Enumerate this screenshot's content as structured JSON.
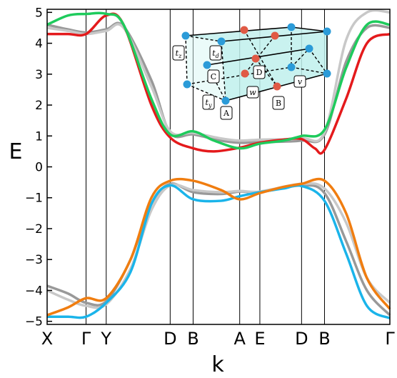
{
  "chart_data": {
    "type": "line",
    "xlabel": "k",
    "ylabel": "E",
    "ylim": [
      -5.1,
      5.1
    ],
    "y_ticks": [
      5,
      4,
      3,
      2,
      1,
      0,
      -1,
      -2,
      -3,
      -4,
      -5
    ],
    "y_tick_labels": [
      "5",
      "4",
      "3",
      "2",
      "1",
      "0",
      "−1",
      "−2",
      "−3",
      "−4",
      "−5"
    ],
    "k_points": [
      {
        "label": "X",
        "x": 0.0
      },
      {
        "label": "Γ",
        "x": 0.56
      },
      {
        "label": "Y",
        "x": 0.85
      },
      {
        "label": "D",
        "x": 1.77
      },
      {
        "label": "B",
        "x": 2.1
      },
      {
        "label": "A",
        "x": 2.77
      },
      {
        "label": "E",
        "x": 3.06
      },
      {
        "label": "D",
        "x": 3.66
      },
      {
        "label": "B",
        "x": 3.99
      },
      {
        "label": "Γ",
        "x": 4.93
      }
    ],
    "xlim": [
      0,
      4.93
    ],
    "series": [
      {
        "color": "#999999",
        "points": [
          [
            0,
            4.6
          ],
          [
            0.3,
            4.45
          ],
          [
            0.56,
            4.35
          ],
          [
            0.85,
            4.45
          ],
          [
            1.1,
            4.55
          ],
          [
            1.5,
            2.8
          ],
          [
            1.77,
            1.1
          ],
          [
            2.1,
            1.05
          ],
          [
            2.5,
            0.85
          ],
          [
            2.77,
            0.78
          ],
          [
            3.06,
            0.8
          ],
          [
            3.66,
            0.85
          ],
          [
            3.99,
            1.05
          ],
          [
            4.3,
            3.4
          ],
          [
            4.6,
            4.5
          ],
          [
            4.93,
            4.5
          ]
        ]
      },
      {
        "color": "#c8c8c8",
        "points": [
          [
            0,
            4.5
          ],
          [
            0.3,
            4.4
          ],
          [
            0.56,
            4.3
          ],
          [
            0.85,
            4.4
          ],
          [
            1.1,
            4.5
          ],
          [
            1.5,
            2.6
          ],
          [
            1.77,
            1.15
          ],
          [
            2.1,
            1.1
          ],
          [
            2.5,
            0.92
          ],
          [
            2.77,
            0.85
          ],
          [
            3.06,
            0.88
          ],
          [
            3.66,
            0.92
          ],
          [
            3.99,
            1.12
          ],
          [
            4.3,
            4.1
          ],
          [
            4.6,
            5.0
          ],
          [
            4.93,
            5.0
          ]
        ]
      },
      {
        "color": "#e41a1c",
        "points": [
          [
            0,
            4.3
          ],
          [
            0.3,
            4.3
          ],
          [
            0.56,
            4.3
          ],
          [
            0.85,
            4.9
          ],
          [
            1.1,
            4.6
          ],
          [
            1.5,
            2.0
          ],
          [
            1.77,
            0.95
          ],
          [
            2.1,
            0.6
          ],
          [
            2.4,
            0.5
          ],
          [
            2.77,
            0.62
          ],
          [
            3.06,
            0.78
          ],
          [
            3.4,
            0.88
          ],
          [
            3.66,
            0.9
          ],
          [
            3.85,
            0.6
          ],
          [
            3.99,
            0.55
          ],
          [
            4.3,
            2.2
          ],
          [
            4.6,
            4.0
          ],
          [
            4.93,
            4.3
          ]
        ]
      },
      {
        "color": "#1ecb5c",
        "points": [
          [
            0,
            4.6
          ],
          [
            0.3,
            4.9
          ],
          [
            0.56,
            4.95
          ],
          [
            0.85,
            4.95
          ],
          [
            1.1,
            4.6
          ],
          [
            1.5,
            2.2
          ],
          [
            1.77,
            1.05
          ],
          [
            2.1,
            1.15
          ],
          [
            2.4,
            0.85
          ],
          [
            2.77,
            0.6
          ],
          [
            3.06,
            0.75
          ],
          [
            3.4,
            0.85
          ],
          [
            3.66,
            1.0
          ],
          [
            3.99,
            1.2
          ],
          [
            4.3,
            3.2
          ],
          [
            4.6,
            4.6
          ],
          [
            4.93,
            4.6
          ]
        ]
      },
      {
        "color": "#999999",
        "points": [
          [
            0,
            -3.85
          ],
          [
            0.3,
            -4.1
          ],
          [
            0.56,
            -4.4
          ],
          [
            0.85,
            -4.35
          ],
          [
            1.2,
            -3.0
          ],
          [
            1.5,
            -1.2
          ],
          [
            1.77,
            -0.55
          ],
          [
            2.1,
            -0.82
          ],
          [
            2.5,
            -0.88
          ],
          [
            2.77,
            -0.8
          ],
          [
            3.06,
            -0.82
          ],
          [
            3.66,
            -0.6
          ],
          [
            3.99,
            -0.85
          ],
          [
            4.3,
            -2.4
          ],
          [
            4.6,
            -4.0
          ],
          [
            4.93,
            -4.8
          ]
        ]
      },
      {
        "color": "#c8c8c8",
        "points": [
          [
            0,
            -4.0
          ],
          [
            0.3,
            -4.3
          ],
          [
            0.56,
            -4.5
          ],
          [
            0.85,
            -4.45
          ],
          [
            1.2,
            -3.3
          ],
          [
            1.5,
            -1.4
          ],
          [
            1.77,
            -0.6
          ],
          [
            2.1,
            -0.75
          ],
          [
            2.5,
            -0.82
          ],
          [
            2.77,
            -0.78
          ],
          [
            3.06,
            -0.8
          ],
          [
            3.66,
            -0.55
          ],
          [
            3.99,
            -0.7
          ],
          [
            4.3,
            -1.8
          ],
          [
            4.6,
            -3.6
          ],
          [
            4.93,
            -4.4
          ]
        ]
      },
      {
        "color": "#1ab4ea",
        "points": [
          [
            0,
            -4.85
          ],
          [
            0.3,
            -4.85
          ],
          [
            0.56,
            -4.85
          ],
          [
            0.85,
            -4.4
          ],
          [
            1.2,
            -3.4
          ],
          [
            1.5,
            -1.2
          ],
          [
            1.77,
            -0.6
          ],
          [
            2.1,
            -1.05
          ],
          [
            2.5,
            -1.1
          ],
          [
            2.77,
            -0.95
          ],
          [
            3.06,
            -0.82
          ],
          [
            3.4,
            -0.7
          ],
          [
            3.66,
            -0.62
          ],
          [
            3.99,
            -1.1
          ],
          [
            4.3,
            -2.8
          ],
          [
            4.6,
            -4.5
          ],
          [
            4.93,
            -4.9
          ]
        ]
      },
      {
        "color": "#f07d10",
        "points": [
          [
            0,
            -4.8
          ],
          [
            0.3,
            -4.55
          ],
          [
            0.56,
            -4.25
          ],
          [
            0.85,
            -4.25
          ],
          [
            1.2,
            -3.0
          ],
          [
            1.5,
            -1.0
          ],
          [
            1.77,
            -0.45
          ],
          [
            2.1,
            -0.45
          ],
          [
            2.5,
            -0.75
          ],
          [
            2.77,
            -1.05
          ],
          [
            3.06,
            -0.85
          ],
          [
            3.4,
            -0.65
          ],
          [
            3.66,
            -0.55
          ],
          [
            3.99,
            -0.45
          ],
          [
            4.3,
            -1.5
          ],
          [
            4.6,
            -3.6
          ],
          [
            4.93,
            -4.6
          ]
        ]
      }
    ]
  },
  "inset": {
    "labels": [
      "t_z",
      "t_d",
      "C",
      "D",
      "t_y",
      "w",
      "v",
      "B",
      "A"
    ]
  }
}
